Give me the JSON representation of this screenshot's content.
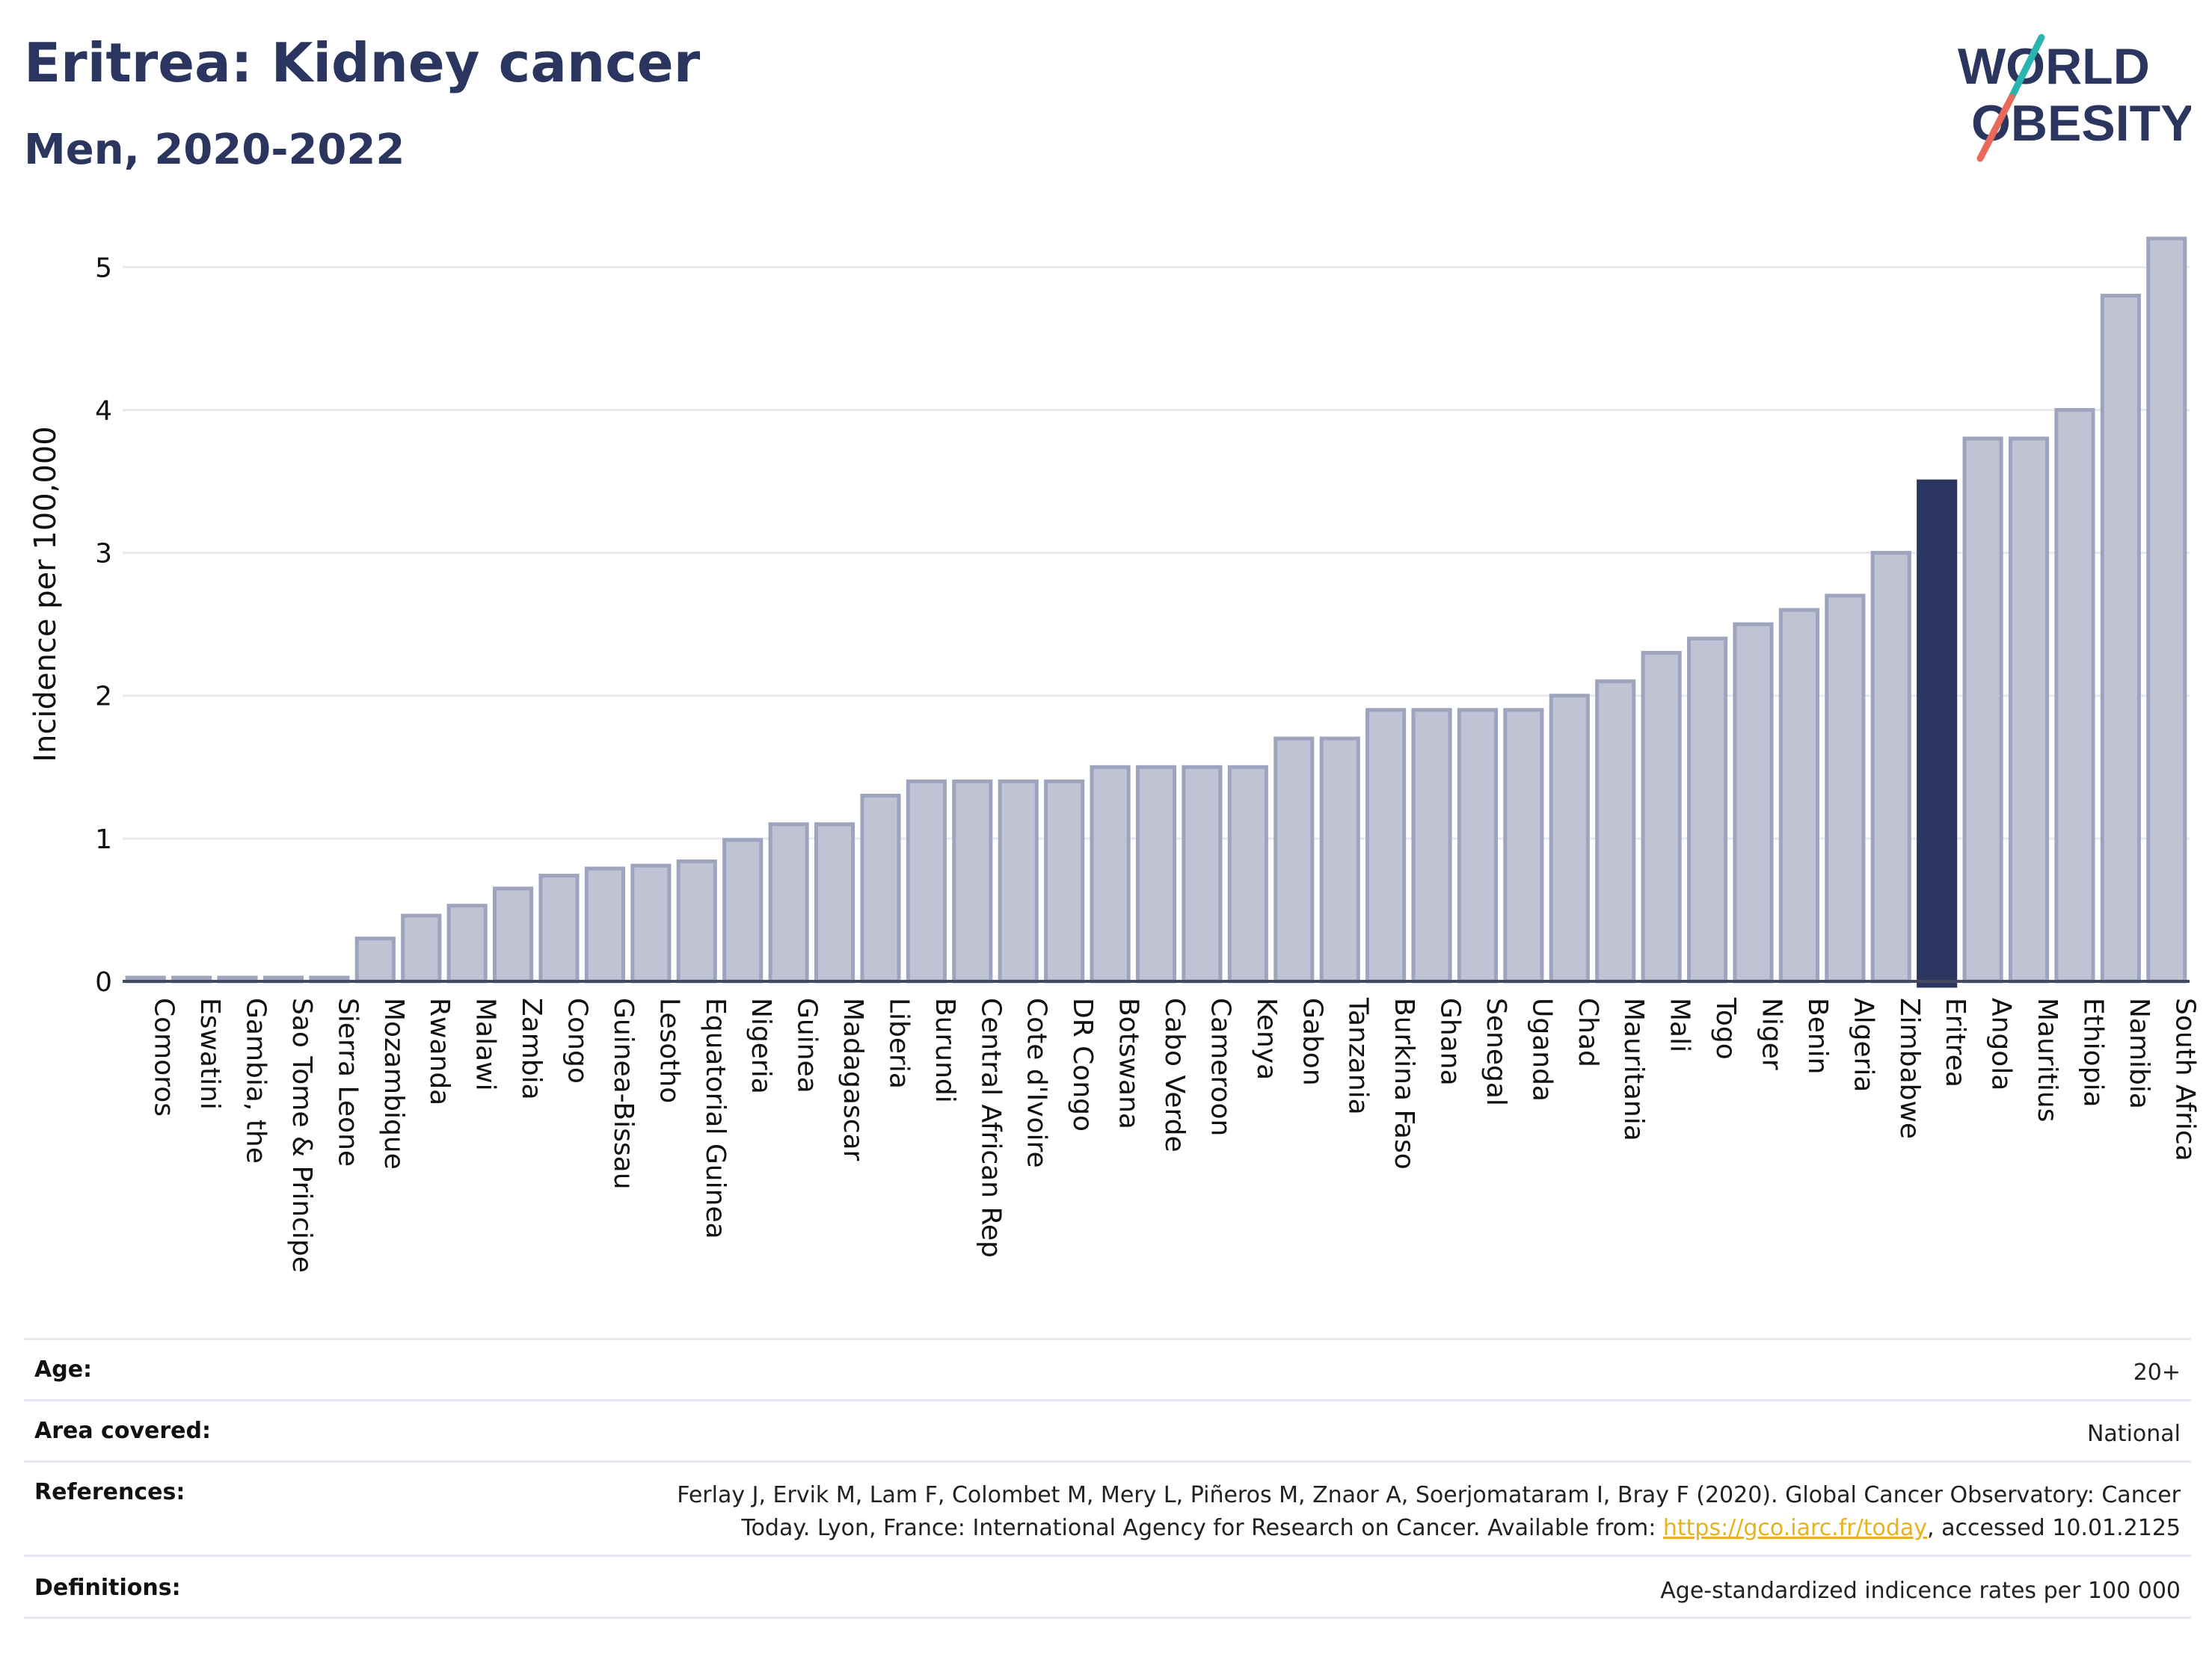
{
  "header": {
    "title": "Eritrea: Kidney cancer",
    "subtitle": "Men, 2020-2022"
  },
  "logo": {
    "line1": "WORLD",
    "line2": "OBESITY",
    "colors": {
      "text": "#2a3560",
      "slash_top": "#2bb5b0",
      "slash_bottom": "#e86a5a"
    }
  },
  "chart_data": {
    "type": "bar",
    "title": "Eritrea: Kidney cancer",
    "subtitle": "Men, 2020-2022",
    "xlabel": "",
    "ylabel": "Incidence per 100,000",
    "ylim": [
      0,
      5.3
    ],
    "yticks": [
      0,
      1,
      2,
      3,
      4,
      5
    ],
    "grid": true,
    "highlight": "Eritrea",
    "colors": {
      "bar": "#bfc3d3",
      "bar_edge": "#9ea4bd",
      "highlight": "#2a3560"
    },
    "categories": [
      "Comoros",
      "Eswatini",
      "Gambia, the",
      "Sao Tome & Principe",
      "Sierra Leone",
      "Mozambique",
      "Rwanda",
      "Malawi",
      "Zambia",
      "Congo",
      "Guinea-Bissau",
      "Lesotho",
      "Equatorial Guinea",
      "Nigeria",
      "Guinea",
      "Madagascar",
      "Liberia",
      "Burundi",
      "Central African Rep",
      "Cote d'Ivoire",
      "DR Congo",
      "Botswana",
      "Cabo Verde",
      "Cameroon",
      "Kenya",
      "Gabon",
      "Tanzania",
      "Burkina Faso",
      "Ghana",
      "Senegal",
      "Uganda",
      "Chad",
      "Mauritania",
      "Mali",
      "Togo",
      "Niger",
      "Benin",
      "Algeria",
      "Zimbabwe",
      "Eritrea",
      "Angola",
      "Mauritius",
      "Ethiopia",
      "Namibia",
      "South Africa"
    ],
    "values": [
      0.0,
      0.0,
      0.0,
      0.0,
      0.0,
      0.3,
      0.46,
      0.53,
      0.65,
      0.74,
      0.79,
      0.81,
      0.84,
      0.99,
      1.1,
      1.1,
      1.3,
      1.4,
      1.4,
      1.4,
      1.4,
      1.5,
      1.5,
      1.5,
      1.5,
      1.7,
      1.7,
      1.9,
      1.9,
      1.9,
      1.9,
      2.0,
      2.1,
      2.3,
      2.4,
      2.5,
      2.6,
      2.7,
      3.0,
      3.5,
      3.8,
      3.8,
      4.0,
      4.8,
      5.2
    ]
  },
  "info": {
    "age": {
      "label": "Age:",
      "value": "20+"
    },
    "area": {
      "label": "Area covered:",
      "value": "National"
    },
    "references": {
      "label": "References:",
      "line1": "Ferlay J, Ervik M, Lam F, Colombet M, Mery L, Piñeros M, Znaor A, Soerjomataram I, Bray F (2020). Global Cancer Observatory: Cancer",
      "line2_pre": "Today. Lyon, France: International Agency for Research on Cancer. Available from: ",
      "link": "https://gco.iarc.fr/today",
      "line2_post": ", accessed 10.01.2125"
    },
    "definitions": {
      "label": "Definitions:",
      "value": "Age-standardized indicence rates per 100 000"
    }
  }
}
